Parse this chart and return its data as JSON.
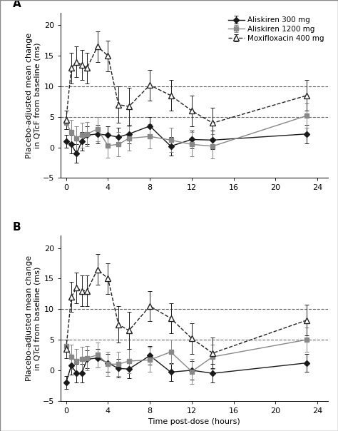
{
  "panel_A": {
    "title": "A",
    "ylabel": "Placebo-adjusted mean change\nin QTcF from baseline (ms)",
    "aliskiren300": {
      "x": [
        0,
        0.5,
        1,
        1.5,
        2,
        3,
        4,
        5,
        6,
        8,
        10,
        12,
        14,
        23
      ],
      "y": [
        1.0,
        0.5,
        -1.0,
        1.0,
        2.0,
        2.2,
        2.0,
        1.7,
        2.2,
        3.5,
        0.2,
        1.3,
        1.2,
        2.2
      ],
      "yerr_low": [
        1.0,
        1.5,
        1.5,
        1.5,
        1.5,
        1.5,
        1.5,
        1.5,
        1.5,
        1.5,
        1.5,
        1.5,
        1.5,
        1.5
      ],
      "yerr_high": [
        1.0,
        1.5,
        1.5,
        1.5,
        1.5,
        1.5,
        1.5,
        1.5,
        1.5,
        1.5,
        1.5,
        1.5,
        1.5,
        1.5
      ]
    },
    "aliskiren1200": {
      "x": [
        0,
        0.5,
        1,
        1.5,
        2,
        3,
        4,
        5,
        6,
        8,
        10,
        12,
        14,
        23
      ],
      "y": [
        4.0,
        2.5,
        1.5,
        2.0,
        2.2,
        3.0,
        0.3,
        0.5,
        1.5,
        1.8,
        1.2,
        0.5,
        0.2,
        5.2
      ],
      "yerr_low": [
        1.0,
        2.0,
        2.0,
        2.0,
        2.0,
        2.0,
        2.0,
        2.0,
        2.0,
        2.0,
        2.0,
        2.0,
        2.0,
        2.0
      ],
      "yerr_high": [
        1.0,
        2.0,
        2.0,
        2.0,
        2.0,
        2.0,
        2.0,
        2.0,
        2.0,
        2.0,
        2.0,
        2.0,
        2.0,
        2.0
      ]
    },
    "moxifloxacin": {
      "x": [
        0,
        0.5,
        1,
        1.5,
        2,
        3,
        4,
        5,
        6,
        8,
        10,
        12,
        14,
        23
      ],
      "y": [
        4.5,
        13.0,
        14.0,
        13.5,
        13.0,
        16.5,
        15.0,
        7.0,
        6.7,
        10.2,
        8.5,
        6.0,
        4.0,
        8.5
      ],
      "yerr_low": [
        1.5,
        2.5,
        2.5,
        2.5,
        2.5,
        2.5,
        2.5,
        3.0,
        3.0,
        2.5,
        2.5,
        2.5,
        2.5,
        2.5
      ],
      "yerr_high": [
        1.5,
        2.5,
        2.5,
        2.5,
        2.5,
        2.5,
        2.5,
        3.0,
        3.0,
        2.5,
        2.5,
        2.5,
        2.5,
        2.5
      ]
    }
  },
  "panel_B": {
    "title": "B",
    "ylabel": "Placebo-adjusted mean change\nin QTcI from baseline (ms)",
    "aliskiren300": {
      "x": [
        0,
        0.5,
        1,
        1.5,
        2,
        3,
        4,
        5,
        6,
        8,
        10,
        12,
        14,
        23
      ],
      "y": [
        -2.0,
        0.8,
        -0.5,
        -0.5,
        1.8,
        2.0,
        1.2,
        0.3,
        0.2,
        2.4,
        -0.3,
        0.0,
        -0.5,
        1.2
      ],
      "yerr_low": [
        1.0,
        1.5,
        1.5,
        1.5,
        1.5,
        1.5,
        1.5,
        1.5,
        1.5,
        1.5,
        1.5,
        1.5,
        1.5,
        1.5
      ],
      "yerr_high": [
        1.0,
        1.5,
        1.5,
        1.5,
        1.5,
        1.5,
        1.5,
        1.5,
        1.5,
        1.5,
        1.5,
        1.5,
        1.5,
        1.5
      ]
    },
    "aliskiren1200": {
      "x": [
        0,
        0.5,
        1,
        1.5,
        2,
        3,
        4,
        5,
        6,
        8,
        10,
        12,
        14,
        23
      ],
      "y": [
        4.0,
        2.2,
        1.5,
        1.8,
        2.0,
        2.5,
        1.0,
        1.0,
        1.5,
        1.7,
        3.0,
        -0.2,
        2.2,
        5.0
      ],
      "yerr_low": [
        1.0,
        2.0,
        2.0,
        2.0,
        2.0,
        2.0,
        2.0,
        2.0,
        2.0,
        2.0,
        2.0,
        2.0,
        2.0,
        2.0
      ],
      "yerr_high": [
        1.0,
        2.0,
        2.0,
        2.0,
        2.0,
        2.0,
        2.0,
        2.0,
        2.0,
        2.0,
        2.0,
        2.0,
        2.0,
        2.0
      ]
    },
    "moxifloxacin": {
      "x": [
        0,
        0.5,
        1,
        1.5,
        2,
        3,
        4,
        5,
        6,
        8,
        10,
        12,
        14,
        23
      ],
      "y": [
        3.5,
        12.0,
        13.5,
        13.0,
        13.0,
        16.5,
        15.0,
        7.5,
        6.5,
        10.5,
        8.5,
        5.2,
        2.8,
        8.2
      ],
      "yerr_low": [
        1.5,
        2.5,
        2.5,
        2.5,
        2.5,
        2.5,
        2.5,
        3.0,
        3.0,
        2.5,
        2.5,
        2.5,
        2.5,
        2.5
      ],
      "yerr_high": [
        1.5,
        2.5,
        2.5,
        2.5,
        2.5,
        2.5,
        2.5,
        3.0,
        3.0,
        2.5,
        2.5,
        2.5,
        2.5,
        2.5
      ]
    }
  },
  "colors": {
    "aliskiren300": "#1a1a1a",
    "aliskiren1200": "#888888",
    "moxifloxacin": "#222222"
  },
  "xlabel": "Time post-dose (hours)",
  "xlim": [
    -0.5,
    25
  ],
  "ylim": [
    -5,
    22
  ],
  "yticks": [
    -5,
    0,
    5,
    10,
    15,
    20
  ],
  "xticks": [
    0,
    4,
    8,
    12,
    16,
    20,
    24
  ],
  "hlines": [
    5,
    10
  ],
  "legend_labels": [
    "Aliskiren 300 mg",
    "Aliskiren 1200 mg",
    "Moxifloxacin 400 mg"
  ],
  "background_color": "#ffffff",
  "font_size": 8,
  "border_color": "#aaaaaa"
}
